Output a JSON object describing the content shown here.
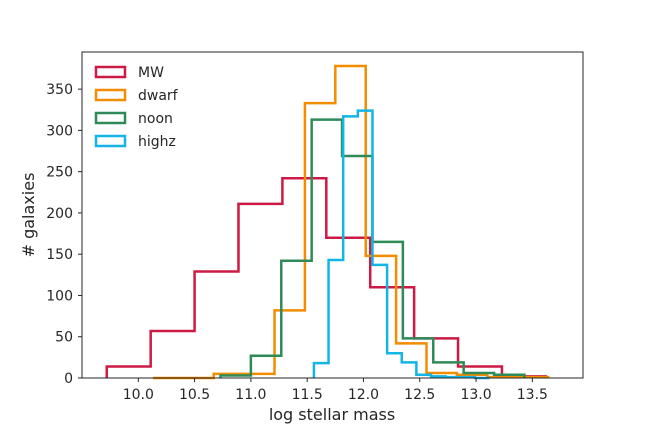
{
  "chart_data": {
    "type": "step-histogram",
    "xlabel": "log stellar mass",
    "ylabel": "# galaxies",
    "xlim": [
      9.5,
      13.95
    ],
    "ylim": [
      0,
      395
    ],
    "x_ticks": [
      "10.0",
      "10.5",
      "11.0",
      "11.5",
      "12.0",
      "12.5",
      "13.0",
      "13.5"
    ],
    "y_ticks": [
      "0",
      "50",
      "100",
      "150",
      "200",
      "250",
      "300",
      "350"
    ],
    "legend_position": "upper-left",
    "grid": false,
    "series": [
      {
        "name": "MW",
        "color": "#cc1a44",
        "edges": [
          9.72,
          10.11,
          10.5,
          10.89,
          11.28,
          11.67,
          12.06,
          12.45,
          12.84,
          13.23,
          13.62
        ],
        "counts": [
          14,
          57,
          129,
          211,
          242,
          170,
          110,
          48,
          14,
          2
        ]
      },
      {
        "name": "dwarf",
        "color": "#f28c00",
        "edges": [
          10.13,
          10.4,
          10.67,
          10.94,
          11.21,
          11.48,
          11.75,
          12.02,
          12.29,
          12.56,
          12.83,
          13.1,
          13.37,
          13.64
        ],
        "counts": [
          0,
          0,
          5,
          5,
          82,
          333,
          378,
          148,
          42,
          6,
          4,
          1,
          1
        ]
      },
      {
        "name": "noon",
        "color": "#2e8b57",
        "edges": [
          10.73,
          11.0,
          11.27,
          11.54,
          11.81,
          12.08,
          12.35,
          12.62,
          12.89,
          13.16,
          13.43
        ],
        "counts": [
          3,
          27,
          142,
          313,
          269,
          165,
          48,
          19,
          6,
          4
        ]
      },
      {
        "name": "highz",
        "color": "#12b5e5",
        "edges": [
          11.56,
          11.69,
          11.82,
          11.95,
          12.08,
          12.21,
          12.34,
          12.47,
          12.6,
          12.73,
          12.86,
          12.99,
          13.12
        ],
        "counts": [
          18,
          143,
          317,
          324,
          137,
          30,
          19,
          4,
          2,
          1,
          1,
          0
        ]
      }
    ]
  }
}
